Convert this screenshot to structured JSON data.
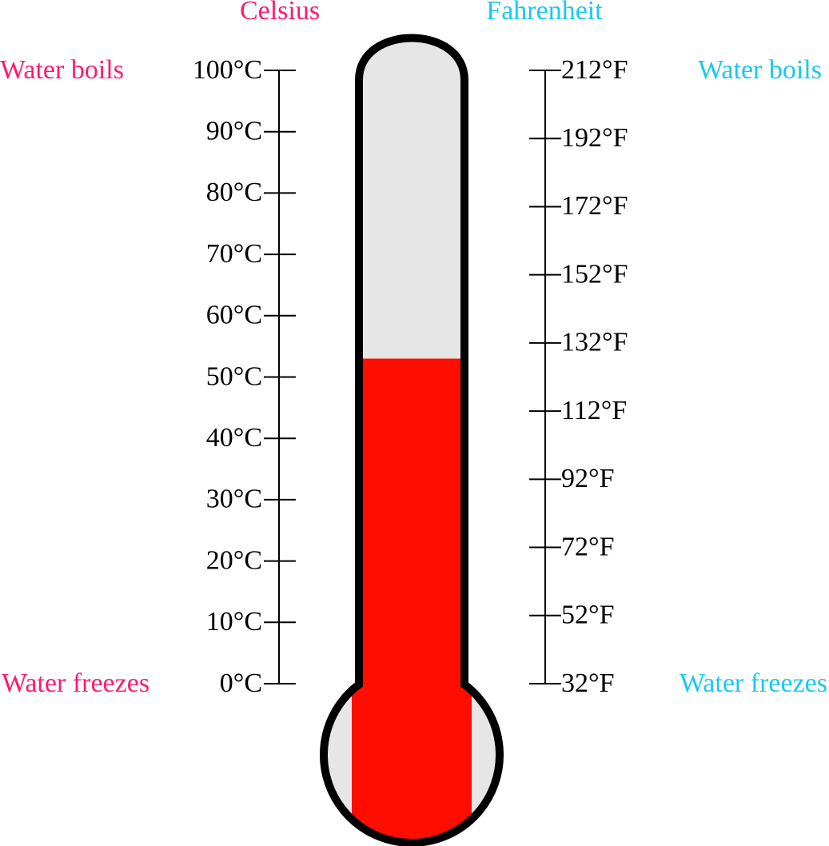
{
  "celsius": {
    "title": "Celsius",
    "boils": "Water boils",
    "freezes": "Water freezes",
    "color": "#ff1a6e",
    "ticks": [
      {
        "value": 0,
        "label": "0°C"
      },
      {
        "value": 10,
        "label": "10°C"
      },
      {
        "value": 20,
        "label": "20°C"
      },
      {
        "value": 30,
        "label": "30°C"
      },
      {
        "value": 40,
        "label": "40°C"
      },
      {
        "value": 50,
        "label": "50°C"
      },
      {
        "value": 60,
        "label": "60°C"
      },
      {
        "value": 70,
        "label": "70°C"
      },
      {
        "value": 80,
        "label": "80°C"
      },
      {
        "value": 90,
        "label": "90°C"
      },
      {
        "value": 100,
        "label": "100°C"
      }
    ]
  },
  "fahrenheit": {
    "title": "Fahrenheit",
    "boils": "Water boils",
    "freezes": "Water freezes",
    "color": "#1ac8ef",
    "ticks": [
      {
        "value": 32,
        "label": "32°F"
      },
      {
        "value": 52,
        "label": "52°F"
      },
      {
        "value": 72,
        "label": "72°F"
      },
      {
        "value": 92,
        "label": "92°F"
      },
      {
        "value": 112,
        "label": "112°F"
      },
      {
        "value": 132,
        "label": "132°F"
      },
      {
        "value": 152,
        "label": "152°F"
      },
      {
        "value": 172,
        "label": "172°F"
      },
      {
        "value": 192,
        "label": "192°F"
      },
      {
        "value": 212,
        "label": "212°F"
      }
    ]
  },
  "level": 53,
  "fill_color": "#ff0d00"
}
